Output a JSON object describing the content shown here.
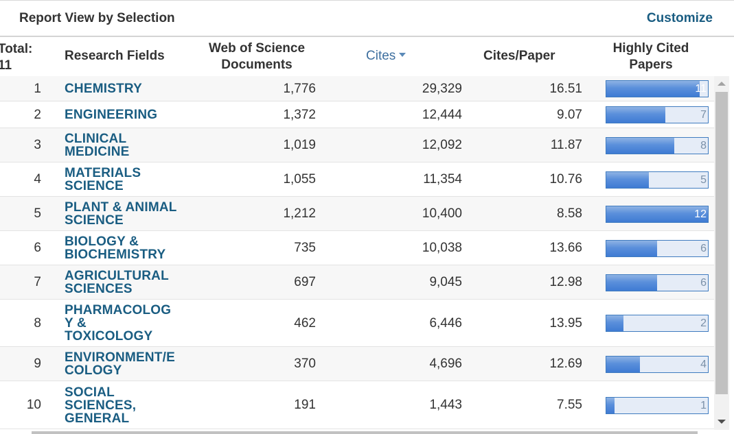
{
  "header": {
    "title": "Report View by Selection",
    "customize_label": "Customize"
  },
  "columns": {
    "total_line1": "Total:",
    "total_line2": "11",
    "fields": "Research Fields",
    "wos_line1": "Web of Science",
    "wos_line2": "Documents",
    "cites": "Cites",
    "cites_per_paper": "Cites/Paper",
    "hcp_line1": "Highly Cited",
    "hcp_line2": "Papers"
  },
  "rows": [
    {
      "rank": "1",
      "field": "CHEMISTRY",
      "wos": "1,776",
      "cites": "29,329",
      "cpp": "16.51",
      "hcp": "11",
      "hcp_value": 11
    },
    {
      "rank": "2",
      "field": "ENGINEERING",
      "wos": "1,372",
      "cites": "12,444",
      "cpp": "9.07",
      "hcp": "7",
      "hcp_value": 7
    },
    {
      "rank": "3",
      "field": "CLINICAL MEDICINE",
      "wos": "1,019",
      "cites": "12,092",
      "cpp": "11.87",
      "hcp": "8",
      "hcp_value": 8
    },
    {
      "rank": "4",
      "field": "MATERIALS SCIENCE",
      "wos": "1,055",
      "cites": "11,354",
      "cpp": "10.76",
      "hcp": "5",
      "hcp_value": 5
    },
    {
      "rank": "5",
      "field": "PLANT & ANIMAL SCIENCE",
      "wos": "1,212",
      "cites": "10,400",
      "cpp": "8.58",
      "hcp": "12",
      "hcp_value": 12
    },
    {
      "rank": "6",
      "field": "BIOLOGY & BIOCHEMISTRY",
      "wos": "735",
      "cites": "10,038",
      "cpp": "13.66",
      "hcp": "6",
      "hcp_value": 6
    },
    {
      "rank": "7",
      "field": "AGRICULTURAL SCIENCES",
      "wos": "697",
      "cites": "9,045",
      "cpp": "12.98",
      "hcp": "6",
      "hcp_value": 6
    },
    {
      "rank": "8",
      "field": "PHARMACOLOGY & TOXICOLOGY",
      "wos": "462",
      "cites": "6,446",
      "cpp": "13.95",
      "hcp": "2",
      "hcp_value": 2
    },
    {
      "rank": "9",
      "field": "ENVIRONMENT/ECOLOGY",
      "wos": "370",
      "cites": "4,696",
      "cpp": "12.69",
      "hcp": "4",
      "hcp_value": 4
    },
    {
      "rank": "10",
      "field": "SOCIAL SCIENCES, GENERAL",
      "wos": "191",
      "cites": "1,443",
      "cpp": "7.55",
      "hcp": "1",
      "hcp_value": 1
    }
  ],
  "hcp_scale_max": 12,
  "colors": {
    "link": "#1a5d82",
    "sort_header": "#3e6f9f",
    "bar_fill": "#3f7bd3",
    "bar_track": "#e5ecf7"
  }
}
